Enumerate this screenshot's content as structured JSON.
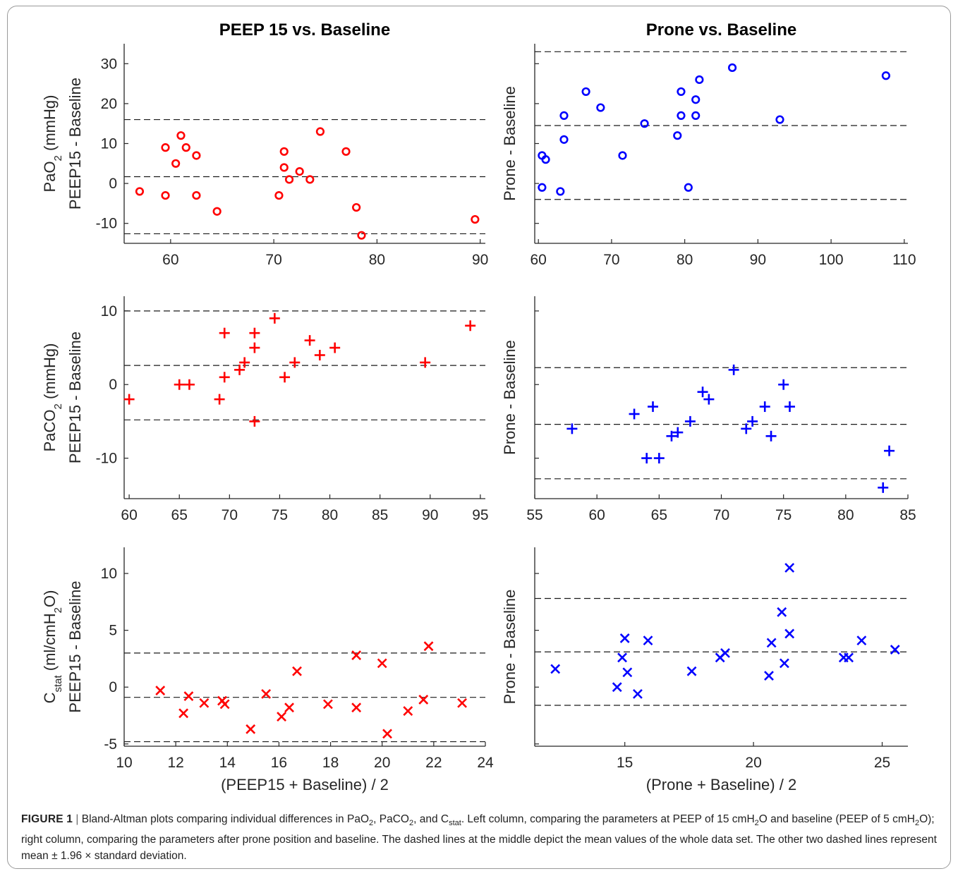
{
  "chart_data": [
    {
      "type": "scatter",
      "id": "p1",
      "title": "PEEP 15 vs. Baseline",
      "ylabel_top": "PaO2 (mmHg)",
      "ylabel_bottom": "PEEP15 - Baseline",
      "xlabel": "",
      "xlim": [
        55.5,
        90.5
      ],
      "ylim": [
        -15,
        35
      ],
      "xticks": [
        60,
        70,
        80,
        90
      ],
      "yticks": [
        -10,
        0,
        10,
        20,
        30
      ],
      "show_ytick_labels": true,
      "marker": "circle",
      "color": "#ff0000",
      "hlines": [
        16,
        1.7,
        -12.6
      ],
      "points": [
        [
          57,
          -2
        ],
        [
          59.5,
          9
        ],
        [
          59.5,
          -3
        ],
        [
          60.5,
          5
        ],
        [
          61,
          12
        ],
        [
          61.5,
          9
        ],
        [
          62.5,
          7
        ],
        [
          62.5,
          -3
        ],
        [
          64.5,
          -7
        ],
        [
          70.5,
          -3
        ],
        [
          71,
          8
        ],
        [
          71,
          4
        ],
        [
          71.5,
          1
        ],
        [
          72.5,
          3
        ],
        [
          73.5,
          1
        ],
        [
          74.5,
          13
        ],
        [
          77,
          8
        ],
        [
          78,
          -6
        ],
        [
          78.5,
          -13
        ],
        [
          89.5,
          -9
        ]
      ]
    },
    {
      "type": "scatter",
      "id": "p2",
      "title": "Prone vs. Baseline",
      "ylabel_top": "",
      "ylabel_bottom": "Prone - Baseline",
      "xlabel": "",
      "xlim": [
        59.5,
        110.5
      ],
      "ylim": [
        -15,
        35
      ],
      "xticks": [
        60,
        70,
        80,
        90,
        100,
        110
      ],
      "yticks": [
        -10,
        0,
        10,
        20,
        30
      ],
      "show_ytick_labels": false,
      "marker": "circle",
      "color": "#0000ff",
      "hlines": [
        33,
        14.5,
        -4
      ],
      "points": [
        [
          60.5,
          7
        ],
        [
          60.5,
          -1
        ],
        [
          61,
          6
        ],
        [
          63,
          -2
        ],
        [
          63.5,
          17
        ],
        [
          63.5,
          11
        ],
        [
          66.5,
          23
        ],
        [
          68.5,
          19
        ],
        [
          71.5,
          7
        ],
        [
          74.5,
          15
        ],
        [
          79,
          12
        ],
        [
          79.5,
          23
        ],
        [
          79.5,
          17
        ],
        [
          80.5,
          -1
        ],
        [
          81.5,
          21
        ],
        [
          81.5,
          17
        ],
        [
          82,
          26
        ],
        [
          86.5,
          29
        ],
        [
          93,
          16
        ],
        [
          107.5,
          27
        ]
      ]
    },
    {
      "type": "scatter",
      "id": "p3",
      "title": "",
      "ylabel_top": "PaCO2 (mmHg)",
      "ylabel_bottom": "PEEP15 - Baseline",
      "xlabel": "",
      "xlim": [
        59.5,
        95.5
      ],
      "ylim": [
        -15.5,
        12
      ],
      "xticks": [
        60,
        65,
        70,
        75,
        80,
        85,
        90,
        95
      ],
      "yticks": [
        -10,
        0,
        10
      ],
      "show_ytick_labels": true,
      "marker": "plus",
      "color": "#ff0000",
      "hlines": [
        10,
        2.6,
        -4.8
      ],
      "points": [
        [
          60,
          -2
        ],
        [
          65,
          0
        ],
        [
          66,
          0
        ],
        [
          69,
          -2
        ],
        [
          69.5,
          1
        ],
        [
          69.5,
          7
        ],
        [
          71,
          2
        ],
        [
          71.5,
          3
        ],
        [
          72.5,
          7
        ],
        [
          72.5,
          5
        ],
        [
          72.5,
          -5
        ],
        [
          74.5,
          9
        ],
        [
          75.5,
          1
        ],
        [
          76.5,
          3
        ],
        [
          78,
          6
        ],
        [
          79,
          4
        ],
        [
          80.5,
          5
        ],
        [
          89.5,
          3
        ],
        [
          94,
          8
        ]
      ]
    },
    {
      "type": "scatter",
      "id": "p4",
      "title": "",
      "ylabel_top": "",
      "ylabel_bottom": "Prone - Baseline",
      "xlabel": "",
      "xlim": [
        55,
        85
      ],
      "ylim": [
        -15.5,
        12
      ],
      "xticks": [
        55,
        60,
        65,
        70,
        75,
        80,
        85
      ],
      "yticks": [
        -10,
        0,
        10
      ],
      "show_ytick_labels": false,
      "marker": "plus",
      "color": "#0000ff",
      "hlines": [
        2.3,
        -5.4,
        -12.8
      ],
      "points": [
        [
          58,
          -6
        ],
        [
          63,
          -4
        ],
        [
          64,
          -10
        ],
        [
          64.5,
          -3
        ],
        [
          65,
          -10
        ],
        [
          66,
          -7
        ],
        [
          66.5,
          -6.5
        ],
        [
          67.5,
          -5
        ],
        [
          68.5,
          -1
        ],
        [
          69,
          -2
        ],
        [
          71,
          2
        ],
        [
          72,
          -6
        ],
        [
          72.5,
          -5
        ],
        [
          73.5,
          -3
        ],
        [
          74,
          -7
        ],
        [
          75,
          0
        ],
        [
          75.5,
          -3
        ],
        [
          83,
          -14
        ],
        [
          83.5,
          -9
        ]
      ]
    },
    {
      "type": "scatter",
      "id": "p5",
      "title": "",
      "ylabel_top": "Cstat (ml/cmH2O)",
      "ylabel_bottom": "PEEP15 - Baseline",
      "xlabel": "(PEEP15 + Baseline) / 2",
      "xlim": [
        10,
        24
      ],
      "ylim": [
        -5.2,
        12.3
      ],
      "xticks": [
        10,
        12,
        14,
        16,
        18,
        20,
        22,
        24
      ],
      "yticks": [
        -5,
        0,
        5,
        10
      ],
      "show_ytick_labels": true,
      "marker": "x",
      "color": "#ff0000",
      "hlines": [
        3,
        -0.9,
        -4.8
      ],
      "points": [
        [
          11.4,
          -0.3
        ],
        [
          12.3,
          -2.3
        ],
        [
          12.5,
          -0.8
        ],
        [
          13.1,
          -1.4
        ],
        [
          13.8,
          -1.2
        ],
        [
          13.9,
          -1.5
        ],
        [
          14.9,
          -3.7
        ],
        [
          15.5,
          -0.6
        ],
        [
          16.1,
          -2.6
        ],
        [
          16.4,
          -1.8
        ],
        [
          16.7,
          1.4
        ],
        [
          17.9,
          -1.5
        ],
        [
          19,
          2.8
        ],
        [
          19,
          -1.8
        ],
        [
          20,
          2.1
        ],
        [
          20.2,
          -4.1
        ],
        [
          21,
          -2.1
        ],
        [
          21.6,
          -1.1
        ],
        [
          21.8,
          3.6
        ],
        [
          23.1,
          -1.4
        ]
      ]
    },
    {
      "type": "scatter",
      "id": "p6",
      "title": "",
      "ylabel_top": "",
      "ylabel_bottom": "Prone - Baseline",
      "xlabel": "(Prone + Baseline) / 2",
      "xlim": [
        11.5,
        26
      ],
      "ylim": [
        -5.2,
        12.3
      ],
      "xticks": [
        15,
        20,
        25
      ],
      "yticks": [
        -5,
        0,
        5,
        10
      ],
      "show_ytick_labels": false,
      "marker": "x",
      "color": "#0000ff",
      "hlines": [
        7.8,
        3.1,
        -1.6
      ],
      "points": [
        [
          12.3,
          1.6
        ],
        [
          14.7,
          0
        ],
        [
          14.9,
          2.6
        ],
        [
          15,
          4.3
        ],
        [
          15.1,
          1.3
        ],
        [
          15.5,
          -0.6
        ],
        [
          15.9,
          4.1
        ],
        [
          17.6,
          1.4
        ],
        [
          18.7,
          2.6
        ],
        [
          18.9,
          3
        ],
        [
          20.6,
          1
        ],
        [
          20.7,
          3.9
        ],
        [
          21.1,
          6.6
        ],
        [
          21.2,
          2.1
        ],
        [
          21.4,
          4.7
        ],
        [
          21.4,
          10.5
        ],
        [
          23.5,
          2.6
        ],
        [
          23.7,
          2.6
        ],
        [
          24.2,
          4.1
        ],
        [
          25.5,
          3.3
        ]
      ]
    }
  ],
  "caption": {
    "label": "FIGURE 1",
    "separator": "|",
    "text": "Bland-Altman plots comparing individual differences in PaO2, PaCO2, and Cstat. Left column, comparing the parameters at PEEP of 15 cmH2O and baseline (PEEP of 5 cmH2O); right column, comparing the parameters after prone position and baseline. The dashed lines at the middle depict the mean values of the whole data set. The other two dashed lines represent mean ± 1.96 × standard deviation."
  }
}
